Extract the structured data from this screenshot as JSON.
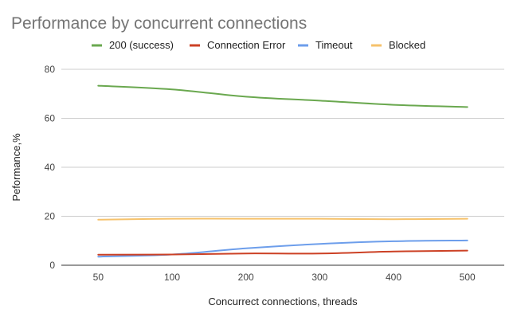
{
  "chart_data": {
    "type": "line",
    "title": "Performance by concurrent connections",
    "xlabel": "Concurrect connections, threads",
    "ylabel": "Peformance,%",
    "categories": [
      "50",
      "100",
      "200",
      "300",
      "400",
      "500"
    ],
    "ylim": [
      0,
      80
    ],
    "yticks": [
      0,
      20,
      40,
      60,
      80
    ],
    "grid": true,
    "legend_position": "top",
    "series": [
      {
        "name": "200 (success)",
        "color": "#6aa84f",
        "values": [
          73.3,
          71.8,
          68.8,
          67.2,
          65.5,
          64.6
        ]
      },
      {
        "name": "Connection Error",
        "color": "#cc4125",
        "values": [
          4.3,
          4.4,
          4.8,
          4.8,
          5.6,
          6.0
        ]
      },
      {
        "name": "Timeout",
        "color": "#6d9eeb",
        "values": [
          3.5,
          4.4,
          6.9,
          8.7,
          9.8,
          10.1
        ]
      },
      {
        "name": "Blocked",
        "color": "#f6c26b",
        "values": [
          18.6,
          19.0,
          19.0,
          19.0,
          18.8,
          19.0
        ]
      }
    ]
  }
}
